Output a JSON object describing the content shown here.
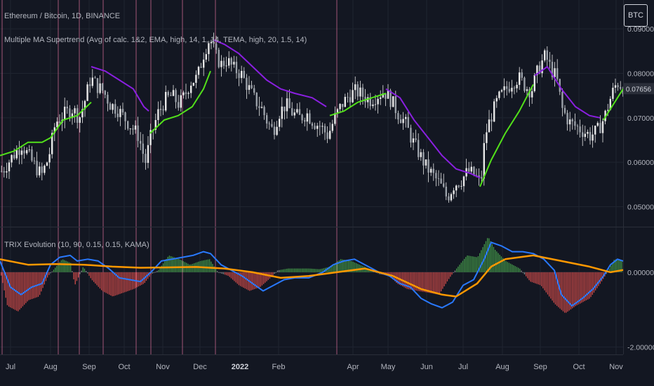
{
  "header": {
    "title": "Ethereum / Bitcoin, 1D, BINANCE",
    "supertrend_label": "Multiple MA Supertrend (Avg of calc. 1&2, EMA, high, 14, 1, 14, TEMA, high, 20, 1.5, 14)",
    "currency": "BTC"
  },
  "indicator": {
    "label": "TRIX Evolution (10, 90, 0.15, 0.15, KAMA)"
  },
  "colors": {
    "background": "#131722",
    "grid": "#1f2430",
    "candle": "#e8e8e8",
    "supertrend_up": "#52e01a",
    "supertrend_down": "#8a1fe0",
    "trix": "#2979ff",
    "signal": "#ff9800",
    "hist_pos": "#4caf50",
    "hist_neg": "#ef5350",
    "hist_neutral": "#9e9e9e",
    "event_line": "#d26a93",
    "axis_text": "#b2b5be"
  },
  "chart_data": [
    {
      "type": "candlestick",
      "title": "Ethereum / Bitcoin, 1D, BINANCE",
      "y_ticks": [
        "0.09000",
        "0.08000",
        "0.07000",
        "0.06000",
        "0.05000"
      ],
      "ylim": [
        0.0455,
        0.0965
      ],
      "last_price_label": "0.07656",
      "x_ticks": [
        "Jul",
        "Aug",
        "Sep",
        "Oct",
        "Nov",
        "Dec",
        "2022",
        "Feb",
        "Apr",
        "May",
        "Jun",
        "Jul",
        "Aug",
        "Sep",
        "Oct",
        "Nov"
      ],
      "event_lines_x": [
        3,
        83,
        113,
        147,
        194,
        215,
        260,
        307,
        480
      ],
      "close_path": [
        [
          2,
          0.058
        ],
        [
          15,
          0.061
        ],
        [
          30,
          0.064
        ],
        [
          45,
          0.06
        ],
        [
          58,
          0.057
        ],
        [
          68,
          0.061
        ],
        [
          78,
          0.069
        ],
        [
          92,
          0.071
        ],
        [
          102,
          0.072
        ],
        [
          112,
          0.07
        ],
        [
          120,
          0.074
        ],
        [
          128,
          0.079
        ],
        [
          138,
          0.077
        ],
        [
          146,
          0.076
        ],
        [
          156,
          0.073
        ],
        [
          166,
          0.072
        ],
        [
          176,
          0.07
        ],
        [
          186,
          0.068
        ],
        [
          196,
          0.066
        ],
        [
          206,
          0.06
        ],
        [
          214,
          0.066
        ],
        [
          224,
          0.071
        ],
        [
          234,
          0.074
        ],
        [
          244,
          0.075
        ],
        [
          254,
          0.073
        ],
        [
          262,
          0.075
        ],
        [
          270,
          0.078
        ],
        [
          280,
          0.079
        ],
        [
          290,
          0.085
        ],
        [
          298,
          0.088
        ],
        [
          306,
          0.084
        ],
        [
          314,
          0.082
        ],
        [
          322,
          0.083
        ],
        [
          332,
          0.081
        ],
        [
          342,
          0.08
        ],
        [
          352,
          0.077
        ],
        [
          362,
          0.074
        ],
        [
          372,
          0.072
        ],
        [
          380,
          0.069
        ],
        [
          388,
          0.067
        ],
        [
          396,
          0.071
        ],
        [
          406,
          0.073
        ],
        [
          416,
          0.071
        ],
        [
          426,
          0.07
        ],
        [
          436,
          0.071
        ],
        [
          446,
          0.069
        ],
        [
          456,
          0.068
        ],
        [
          466,
          0.066
        ],
        [
          476,
          0.07
        ],
        [
          486,
          0.073
        ],
        [
          496,
          0.075
        ],
        [
          506,
          0.076
        ],
        [
          516,
          0.075
        ],
        [
          526,
          0.074
        ],
        [
          536,
          0.075
        ],
        [
          546,
          0.076
        ],
        [
          556,
          0.074
        ],
        [
          566,
          0.071
        ],
        [
          576,
          0.069
        ],
        [
          586,
          0.065
        ],
        [
          596,
          0.062
        ],
        [
          606,
          0.059
        ],
        [
          616,
          0.057
        ],
        [
          626,
          0.055
        ],
        [
          636,
          0.052
        ],
        [
          646,
          0.055
        ],
        [
          656,
          0.056
        ],
        [
          666,
          0.058
        ],
        [
          676,
          0.057
        ],
        [
          684,
          0.055
        ],
        [
          690,
          0.066
        ],
        [
          698,
          0.07
        ],
        [
          708,
          0.074
        ],
        [
          718,
          0.076
        ],
        [
          728,
          0.078
        ],
        [
          738,
          0.079
        ],
        [
          748,
          0.077
        ],
        [
          756,
          0.076
        ],
        [
          766,
          0.081
        ],
        [
          776,
          0.084
        ],
        [
          784,
          0.081
        ],
        [
          792,
          0.079
        ],
        [
          800,
          0.072
        ],
        [
          810,
          0.069
        ],
        [
          820,
          0.068
        ],
        [
          830,
          0.067
        ],
        [
          840,
          0.066
        ],
        [
          850,
          0.067
        ],
        [
          860,
          0.07
        ],
        [
          870,
          0.075
        ],
        [
          878,
          0.078
        ],
        [
          886,
          0.077
        ]
      ],
      "supertrend": [
        {
          "trend": "up",
          "points": [
            [
              0,
              0.0615
            ],
            [
              20,
              0.0625
            ],
            [
              40,
              0.0645
            ],
            [
              60,
              0.0645
            ],
            [
              72,
              0.0655
            ],
            [
              90,
              0.0695
            ],
            [
              110,
              0.0705
            ],
            [
              130,
              0.0735
            ]
          ]
        },
        {
          "trend": "down",
          "points": [
            [
              130,
              0.0815
            ],
            [
              150,
              0.0805
            ],
            [
              170,
              0.0785
            ],
            [
              190,
              0.0765
            ],
            [
              205,
              0.0725
            ],
            [
              212,
              0.0715
            ]
          ]
        },
        {
          "trend": "up",
          "points": [
            [
              214,
              0.0665
            ],
            [
              234,
              0.0695
            ],
            [
              254,
              0.0705
            ],
            [
              274,
              0.0725
            ],
            [
              290,
              0.0765
            ],
            [
              300,
              0.0805
            ]
          ]
        },
        {
          "trend": "down",
          "points": [
            [
              305,
              0.0875
            ],
            [
              320,
              0.0865
            ],
            [
              340,
              0.0845
            ],
            [
              360,
              0.0815
            ],
            [
              380,
              0.0785
            ],
            [
              400,
              0.0765
            ],
            [
              420,
              0.0755
            ],
            [
              445,
              0.0745
            ],
            [
              465,
              0.0725
            ]
          ]
        },
        {
          "trend": "up",
          "points": [
            [
              470,
              0.0705
            ],
            [
              490,
              0.0715
            ],
            [
              510,
              0.0735
            ],
            [
              530,
              0.0745
            ],
            [
              550,
              0.0755
            ]
          ]
        },
        {
          "trend": "down",
          "points": [
            [
              550,
              0.0765
            ],
            [
              570,
              0.0745
            ],
            [
              590,
              0.0695
            ],
            [
              610,
              0.0655
            ],
            [
              630,
              0.0615
            ],
            [
              650,
              0.0585
            ],
            [
              670,
              0.0575
            ],
            [
              684,
              0.0565
            ]
          ]
        },
        {
          "trend": "up",
          "points": [
            [
              684,
              0.0545
            ],
            [
              700,
              0.0605
            ],
            [
              720,
              0.0665
            ],
            [
              740,
              0.0715
            ],
            [
              760,
              0.0775
            ]
          ]
        },
        {
          "trend": "down",
          "points": [
            [
              762,
              0.0795
            ],
            [
              780,
              0.0815
            ],
            [
              800,
              0.0765
            ],
            [
              820,
              0.0725
            ],
            [
              840,
              0.0705
            ],
            [
              855,
              0.07
            ]
          ]
        },
        {
          "trend": "up",
          "points": [
            [
              860,
              0.0695
            ],
            [
              880,
              0.0745
            ],
            [
              888,
              0.0765
            ]
          ]
        }
      ]
    },
    {
      "type": "line",
      "title": "TRIX Evolution (10, 90, 0.15, 0.15, KAMA)",
      "y_ticks": [
        "0.00000",
        "-2.00000"
      ],
      "ylim": [
        -2.2,
        1.2
      ],
      "trix_line": [
        [
          0,
          0.3
        ],
        [
          15,
          -0.4
        ],
        [
          30,
          -0.6
        ],
        [
          45,
          -0.4
        ],
        [
          60,
          -0.3
        ],
        [
          72,
          0.2
        ],
        [
          85,
          0.4
        ],
        [
          100,
          0.45
        ],
        [
          110,
          0.3
        ],
        [
          125,
          0.35
        ],
        [
          140,
          0.3
        ],
        [
          155,
          0.1
        ],
        [
          170,
          -0.15
        ],
        [
          185,
          -0.2
        ],
        [
          200,
          -0.25
        ],
        [
          215,
          0.0
        ],
        [
          230,
          0.3
        ],
        [
          245,
          0.35
        ],
        [
          260,
          0.4
        ],
        [
          275,
          0.45
        ],
        [
          290,
          0.55
        ],
        [
          300,
          0.5
        ],
        [
          315,
          0.2
        ],
        [
          330,
          0.05
        ],
        [
          345,
          -0.1
        ],
        [
          360,
          -0.3
        ],
        [
          375,
          -0.5
        ],
        [
          390,
          -0.35
        ],
        [
          405,
          -0.2
        ],
        [
          420,
          -0.15
        ],
        [
          440,
          -0.15
        ],
        [
          460,
          0.0
        ],
        [
          475,
          0.2
        ],
        [
          490,
          0.3
        ],
        [
          505,
          0.35
        ],
        [
          520,
          0.2
        ],
        [
          540,
          0.0
        ],
        [
          555,
          -0.1
        ],
        [
          570,
          -0.3
        ],
        [
          585,
          -0.4
        ],
        [
          600,
          -0.7
        ],
        [
          615,
          -0.85
        ],
        [
          630,
          -0.95
        ],
        [
          645,
          -0.8
        ],
        [
          660,
          -0.35
        ],
        [
          675,
          -0.2
        ],
        [
          690,
          0.35
        ],
        [
          700,
          0.8
        ],
        [
          715,
          0.7
        ],
        [
          730,
          0.55
        ],
        [
          745,
          0.55
        ],
        [
          760,
          0.5
        ],
        [
          775,
          0.35
        ],
        [
          790,
          0.05
        ],
        [
          800,
          -0.6
        ],
        [
          815,
          -0.9
        ],
        [
          830,
          -0.7
        ],
        [
          845,
          -0.45
        ],
        [
          860,
          -0.1
        ],
        [
          870,
          0.2
        ],
        [
          880,
          0.35
        ],
        [
          888,
          0.3
        ]
      ],
      "signal_line": [
        [
          0,
          0.35
        ],
        [
          40,
          0.2
        ],
        [
          80,
          0.22
        ],
        [
          120,
          0.2
        ],
        [
          160,
          0.15
        ],
        [
          200,
          0.12
        ],
        [
          240,
          0.13
        ],
        [
          280,
          0.14
        ],
        [
          320,
          0.1
        ],
        [
          360,
          0.0
        ],
        [
          400,
          -0.15
        ],
        [
          440,
          -0.1
        ],
        [
          480,
          0.0
        ],
        [
          520,
          0.1
        ],
        [
          560,
          -0.1
        ],
        [
          600,
          -0.45
        ],
        [
          630,
          -0.6
        ],
        [
          650,
          -0.65
        ],
        [
          680,
          -0.3
        ],
        [
          700,
          0.15
        ],
        [
          720,
          0.35
        ],
        [
          760,
          0.45
        ],
        [
          800,
          0.3
        ],
        [
          840,
          0.15
        ],
        [
          870,
          0.0
        ],
        [
          888,
          0.06
        ]
      ],
      "histogram": [
        [
          0,
          0
        ],
        [
          10,
          -0.9
        ],
        [
          25,
          -1.05
        ],
        [
          40,
          -0.75
        ],
        [
          55,
          -0.65
        ],
        [
          68,
          -0.1
        ],
        [
          75,
          0.05
        ],
        [
          88,
          0.35
        ],
        [
          100,
          0.25
        ],
        [
          106,
          -0.35
        ],
        [
          118,
          0.15
        ],
        [
          130,
          -0.2
        ],
        [
          145,
          -0.5
        ],
        [
          160,
          -0.65
        ],
        [
          175,
          -0.55
        ],
        [
          190,
          -0.45
        ],
        [
          205,
          -0.3
        ],
        [
          215,
          -0.05
        ],
        [
          225,
          0.05
        ],
        [
          240,
          0.45
        ],
        [
          255,
          0.35
        ],
        [
          270,
          0.2
        ],
        [
          285,
          0.3
        ],
        [
          298,
          0.35
        ],
        [
          310,
          0.0
        ],
        [
          325,
          -0.1
        ],
        [
          340,
          -0.35
        ],
        [
          355,
          -0.5
        ],
        [
          370,
          -0.4
        ],
        [
          385,
          -0.15
        ],
        [
          395,
          0.05
        ],
        [
          410,
          0.1
        ],
        [
          425,
          0.1
        ],
        [
          440,
          0.1
        ],
        [
          455,
          0.08
        ],
        [
          470,
          0.15
        ],
        [
          485,
          0.35
        ],
        [
          500,
          0.3
        ],
        [
          512,
          0.2
        ],
        [
          525,
          0.1
        ],
        [
          540,
          -0.05
        ],
        [
          555,
          -0.1
        ],
        [
          565,
          -0.3
        ],
        [
          580,
          -0.45
        ],
        [
          595,
          -0.5
        ],
        [
          610,
          -0.55
        ],
        [
          625,
          -0.6
        ],
        [
          640,
          -0.15
        ],
        [
          650,
          0.1
        ],
        [
          665,
          0.45
        ],
        [
          680,
          0.4
        ],
        [
          695,
          0.95
        ],
        [
          705,
          0.6
        ],
        [
          720,
          0.3
        ],
        [
          740,
          0.1
        ],
        [
          755,
          -0.25
        ],
        [
          770,
          -0.35
        ],
        [
          790,
          -0.85
        ],
        [
          805,
          -1.1
        ],
        [
          820,
          -0.9
        ],
        [
          840,
          -0.7
        ],
        [
          855,
          -0.3
        ],
        [
          865,
          0.0
        ],
        [
          875,
          0.35
        ],
        [
          888,
          0.3
        ]
      ]
    }
  ]
}
